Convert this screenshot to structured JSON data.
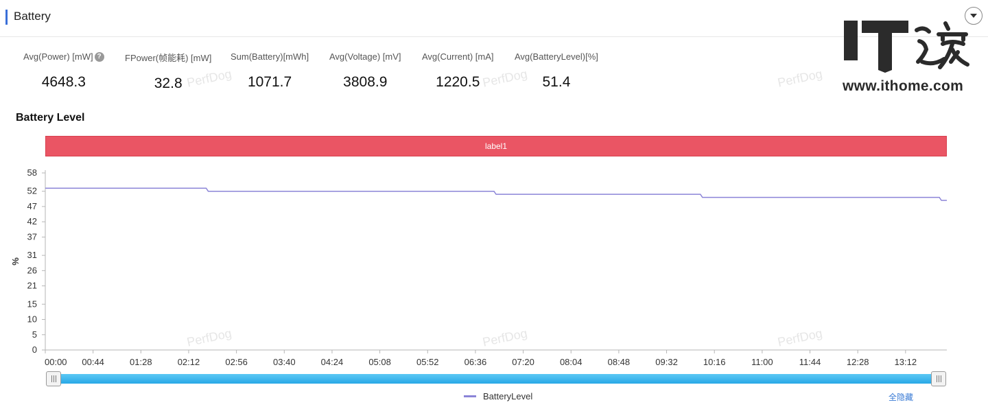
{
  "header": {
    "title": "Battery"
  },
  "metrics": [
    {
      "label": "Avg(Power) [mW]",
      "value": "4648.3"
    },
    {
      "label": "FPower(帧能耗) [mW]",
      "value": "32.8"
    },
    {
      "label": "Sum(Battery)[mWh]",
      "value": "1071.7"
    },
    {
      "label": "Avg(Voltage) [mV]",
      "value": "3808.9"
    },
    {
      "label": "Avg(Current) [mA]",
      "value": "1220.5"
    },
    {
      "label": "Avg(BatteryLevel)[%]",
      "value": "51.4"
    }
  ],
  "help_icon_glyph": "?",
  "watermark_text": "PerfDog",
  "logo": {
    "text": "IT之家",
    "url": "www.ithome.com"
  },
  "chart_title": "Battery Level",
  "label_band": "label1",
  "legend": {
    "series_name": "BatteryLevel",
    "hide_all": "全隐藏"
  },
  "colors": {
    "accent": "#3a6fd8",
    "label_band": "#ea5564",
    "series": "#8b84d7",
    "slider": "#28a8e6",
    "link": "#3a7bd5"
  },
  "chart_data": {
    "type": "line",
    "title": "Battery Level",
    "xlabel": "",
    "ylabel": "%",
    "y_ticks": [
      0,
      5,
      10,
      15,
      21,
      26,
      31,
      37,
      42,
      47,
      52,
      58
    ],
    "ylim": [
      0,
      58
    ],
    "x_tick_labels": [
      "00:00",
      "00:44",
      "01:28",
      "02:12",
      "02:56",
      "03:40",
      "04:24",
      "05:08",
      "05:52",
      "06:36",
      "07:20",
      "08:04",
      "08:48",
      "09:32",
      "10:16",
      "11:00",
      "11:44",
      "12:28",
      "13:12"
    ],
    "x_range_minutes": [
      0,
      830
    ],
    "series": [
      {
        "name": "BatteryLevel",
        "step": true,
        "x_minutes": [
          0,
          150,
          415,
          605,
          825,
          830
        ],
        "values": [
          53,
          52,
          51,
          50,
          49,
          49
        ]
      }
    ]
  }
}
